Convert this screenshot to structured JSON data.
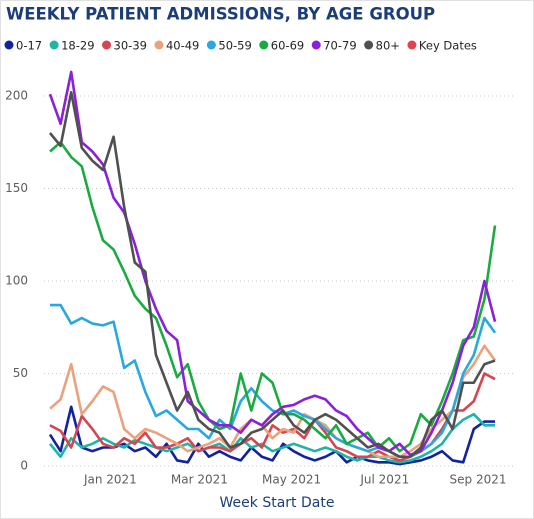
{
  "chart_data": {
    "type": "line",
    "title": "WEEKLY PATIENT ADMISSIONS, BY AGE GROUP",
    "x_label": "Week Start Date",
    "x": [
      0,
      1,
      2,
      3,
      4,
      5,
      6,
      7,
      8,
      9,
      10,
      11,
      12,
      13,
      14,
      15,
      16,
      17,
      18,
      19,
      20,
      21,
      22,
      23,
      24,
      25,
      26,
      27,
      28,
      29,
      30,
      31,
      32,
      33,
      34,
      35,
      36,
      37,
      38,
      39,
      40,
      41,
      42
    ],
    "xlim": [
      0,
      42
    ],
    "xticks": [
      {
        "value": 5.7,
        "label": "Jan 2021"
      },
      {
        "value": 14.1,
        "label": "Mar 2021"
      },
      {
        "value": 22.8,
        "label": "May 2021"
      },
      {
        "value": 31.6,
        "label": "Jul 2021"
      },
      {
        "value": 40.4,
        "label": "Sep 2021"
      }
    ],
    "ylim": [
      0,
      210
    ],
    "yticks": [
      0,
      50,
      100,
      150,
      200
    ],
    "grid": true,
    "series": [
      {
        "name": "0-17",
        "color": "#12239e",
        "values": [
          17,
          8,
          32,
          10,
          8,
          10,
          10,
          12,
          8,
          10,
          5,
          12,
          3,
          2,
          12,
          5,
          8,
          5,
          3,
          10,
          5,
          3,
          12,
          8,
          5,
          3,
          5,
          8,
          2,
          5,
          3,
          2,
          2,
          1,
          2,
          3,
          5,
          8,
          3,
          2,
          20,
          24,
          24
        ]
      },
      {
        "name": "18-29",
        "color": "#1fb5a6",
        "values": [
          12,
          5,
          15,
          10,
          12,
          15,
          12,
          10,
          14,
          12,
          10,
          8,
          10,
          12,
          8,
          10,
          12,
          8,
          15,
          10,
          12,
          8,
          10,
          12,
          10,
          8,
          10,
          8,
          5,
          3,
          5,
          5,
          3,
          2,
          3,
          5,
          8,
          12,
          20,
          25,
          28,
          22,
          22
        ]
      },
      {
        "name": "30-39",
        "color": "#d64550",
        "values": [
          22,
          19,
          10,
          27,
          20,
          12,
          10,
          15,
          12,
          18,
          10,
          10,
          12,
          15,
          8,
          10,
          10,
          8,
          12,
          15,
          10,
          22,
          18,
          20,
          15,
          25,
          18,
          10,
          8,
          5,
          5,
          8,
          5,
          3,
          5,
          8,
          12,
          20,
          30,
          30,
          35,
          50,
          47
        ]
      },
      {
        "name": "40-49",
        "color": "#eba17c",
        "values": [
          31,
          36,
          55,
          28,
          35,
          43,
          40,
          20,
          15,
          20,
          18,
          15,
          12,
          8,
          10,
          12,
          15,
          10,
          20,
          25,
          22,
          15,
          20,
          18,
          28,
          25,
          22,
          15,
          12,
          10,
          8,
          5,
          5,
          5,
          8,
          12,
          20,
          25,
          30,
          48,
          55,
          65,
          57
        ]
      },
      {
        "name": "50-59",
        "color": "#28a8df",
        "values": [
          87,
          87,
          77,
          80,
          77,
          76,
          78,
          53,
          57,
          40,
          27,
          30,
          25,
          20,
          20,
          15,
          25,
          20,
          35,
          42,
          35,
          30,
          28,
          30,
          27,
          25,
          20,
          15,
          12,
          10,
          8,
          10,
          8,
          5,
          5,
          8,
          12,
          18,
          30,
          50,
          60,
          80,
          72
        ]
      },
      {
        "name": "60-69",
        "color": "#1aab40",
        "values": [
          170,
          175,
          167,
          162,
          140,
          122,
          117,
          105,
          92,
          85,
          80,
          65,
          48,
          55,
          35,
          25,
          20,
          22,
          50,
          30,
          50,
          45,
          28,
          28,
          25,
          20,
          15,
          22,
          12,
          15,
          18,
          10,
          15,
          8,
          12,
          28,
          22,
          35,
          50,
          68,
          70,
          90,
          130
        ]
      },
      {
        "name": "70-79",
        "color": "#8a1fdc",
        "values": [
          201,
          185,
          213,
          175,
          170,
          163,
          145,
          137,
          120,
          100,
          85,
          73,
          68,
          35,
          30,
          25,
          22,
          22,
          18,
          25,
          22,
          28,
          32,
          33,
          36,
          38,
          36,
          30,
          27,
          20,
          15,
          10,
          8,
          12,
          6,
          8,
          18,
          30,
          45,
          65,
          75,
          100,
          78
        ]
      },
      {
        "name": "80+",
        "color": "#505050",
        "values": [
          180,
          173,
          202,
          172,
          165,
          160,
          178,
          140,
          110,
          105,
          60,
          45,
          30,
          40,
          25,
          20,
          18,
          10,
          12,
          18,
          20,
          25,
          30,
          22,
          18,
          25,
          28,
          25,
          20,
          15,
          10,
          12,
          8,
          5,
          5,
          10,
          25,
          30,
          20,
          45,
          45,
          55,
          57
        ]
      },
      {
        "name": "Key Dates",
        "color": "#e0444e",
        "values": [
          null,
          null,
          null,
          null,
          null,
          null,
          null,
          null,
          null,
          null,
          null,
          null,
          null,
          null,
          null,
          null,
          null,
          null,
          null,
          null,
          null,
          null,
          null,
          null,
          null,
          null,
          null,
          null,
          null,
          null,
          null,
          null,
          null,
          null,
          null,
          null,
          null,
          null,
          null,
          null,
          null,
          null,
          null
        ]
      }
    ]
  }
}
